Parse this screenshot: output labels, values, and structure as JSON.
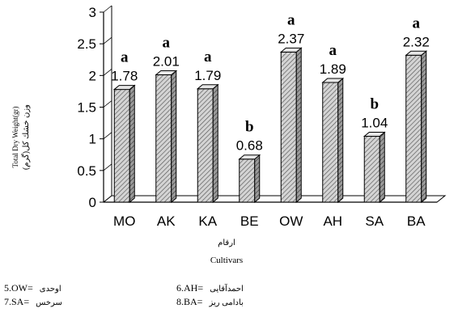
{
  "chart_data": {
    "type": "bar",
    "categories": [
      "MO",
      "AK",
      "KA",
      "BE",
      "OW",
      "AH",
      "SA",
      "BA"
    ],
    "values": [
      1.78,
      2.01,
      1.79,
      0.68,
      2.37,
      1.89,
      1.04,
      2.32
    ],
    "value_labels": [
      "1.78",
      "2.01",
      "1.79",
      "0.68",
      "2.37",
      "1.89",
      "1.04",
      "2.32"
    ],
    "letters": [
      "a",
      "a",
      "a",
      "b",
      "a",
      "a",
      "b",
      "a"
    ],
    "ylabel": "Total Dry Weight(gr)",
    "ylabel_local": "وزن خشك كل(گرم)",
    "xlabel": "Cultivars",
    "xlabel_local": "ارقام",
    "ylim": [
      0,
      3
    ],
    "yticks": [
      0,
      0.5,
      1,
      1.5,
      2,
      2.5,
      3
    ],
    "ytick_labels": [
      "0",
      "0.5",
      "1",
      "1.5",
      "2",
      "2.5",
      "3"
    ],
    "style": "3d-bar",
    "bar_fill": "#d4d4d4",
    "bar_hatch": "#555555",
    "grid": false
  },
  "legend": [
    {
      "code": "5.OW=",
      "name": "اوحدی"
    },
    {
      "code": "6.AH=",
      "name": "احمدآقایی"
    },
    {
      "code": "7.SA=",
      "name": "سرخس"
    },
    {
      "code": "8.BA=",
      "name": "بادامی ریز"
    }
  ]
}
